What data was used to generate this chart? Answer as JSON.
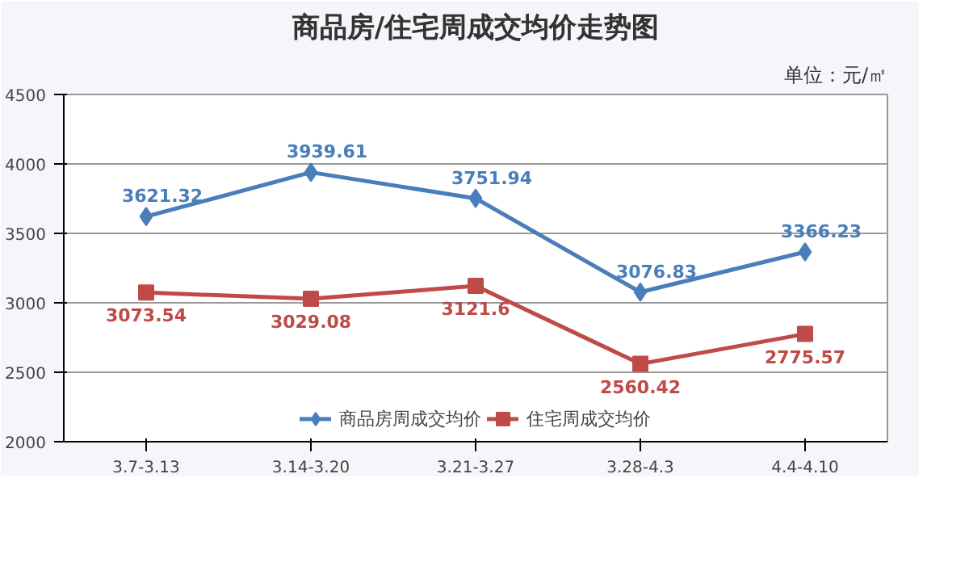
{
  "chart_data": {
    "type": "line",
    "title": "商品房/住宅周成交均价走势图",
    "annotations": [
      "单位：元/㎡"
    ],
    "categories": [
      "3.7-3.13",
      "3.14-3.20",
      "3.21-3.27",
      "3.28-4.3",
      "4.4-4.10"
    ],
    "series": [
      {
        "name": "商品房周成交均价",
        "color": "#4a7ebb",
        "marker": "diamond",
        "values": [
          3621.32,
          3939.61,
          3751.94,
          3076.83,
          3366.23
        ]
      },
      {
        "name": "住宅周成交均价",
        "color": "#be4b48",
        "marker": "square",
        "values": [
          3073.54,
          3029.08,
          3121.6,
          2560.42,
          2775.57
        ]
      }
    ],
    "ylim": [
      2000,
      4500
    ],
    "yticks": [
      2000,
      2500,
      3000,
      3500,
      4000,
      4500
    ],
    "grid": "y",
    "legend": "bottom",
    "data_labels": true
  }
}
